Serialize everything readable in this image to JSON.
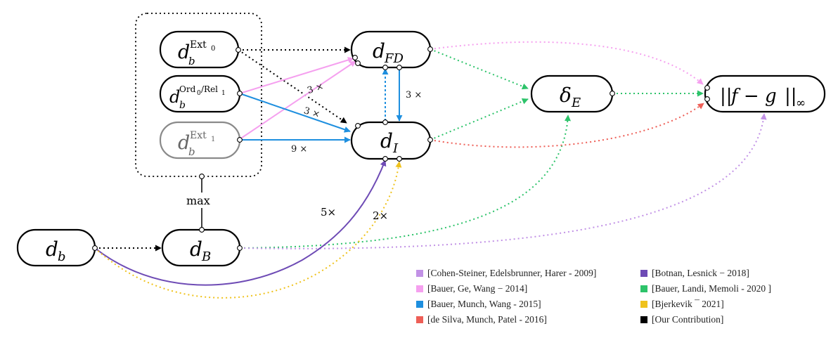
{
  "nodes": {
    "ext0": {
      "base": "d",
      "sub": "b",
      "sup": "Ext",
      "supsub": "0"
    },
    "ord0rel1": {
      "base": "d",
      "sub": "b",
      "sup": "Ord",
      "supsub": "0",
      "sup2": "/Rel",
      "supsub2": "1"
    },
    "ext1": {
      "base": "d",
      "sub": "b",
      "sup": "Ext",
      "supsub": "1"
    },
    "dfd": {
      "base": "d",
      "sub": "FD"
    },
    "di": {
      "base": "d",
      "sub": "I"
    },
    "deltae": {
      "base": "δ",
      "sub": "E"
    },
    "norm": {
      "open": "||",
      "expr": "f − g",
      "close": "||",
      "sub": "∞"
    },
    "db": {
      "base": "d",
      "sub": "b"
    },
    "dB": {
      "base": "d",
      "sub": "B"
    }
  },
  "edge_labels": {
    "max": "max",
    "three_x_vertical": "3 ×",
    "three_x_pink": "3 ×",
    "three_x_blue": "3 ×",
    "nine_x": "9 ×",
    "five_x": "5×",
    "two_x": "2×"
  },
  "legend": [
    {
      "label": "[Cohen-Steiner, Edelsbrunner, Harer - 2009]",
      "color": "#c292e6"
    },
    {
      "label": "[Bauer, Ge, Wang − 2014]",
      "color": "#f5a0ef"
    },
    {
      "label": "[Bauer, Munch, Wang - 2015]",
      "color": "#1e8fdf"
    },
    {
      "label": "[de Silva, Munch, Patel - 2016]",
      "color": "#ee5f57"
    },
    {
      "label": "[Botnan, Lesnick − 2018]",
      "color": "#6e4bb5"
    },
    {
      "label": "[Bauer, Landi, Memoli - 2020 ]",
      "color": "#2dc36a"
    },
    {
      "label": "[Bjerkevik ¯ 2021]",
      "color": "#efc21c"
    },
    {
      "label": "[Our Contribution]",
      "color": "#000000"
    }
  ],
  "colors": {
    "cohen": "#c292e6",
    "bgw": "#f5a0ef",
    "bmw": "#1e8fdf",
    "dsmp": "#ee5f57",
    "bl": "#6e4bb5",
    "blm": "#2dc36a",
    "bj": "#efc21c",
    "ours": "#000000"
  }
}
